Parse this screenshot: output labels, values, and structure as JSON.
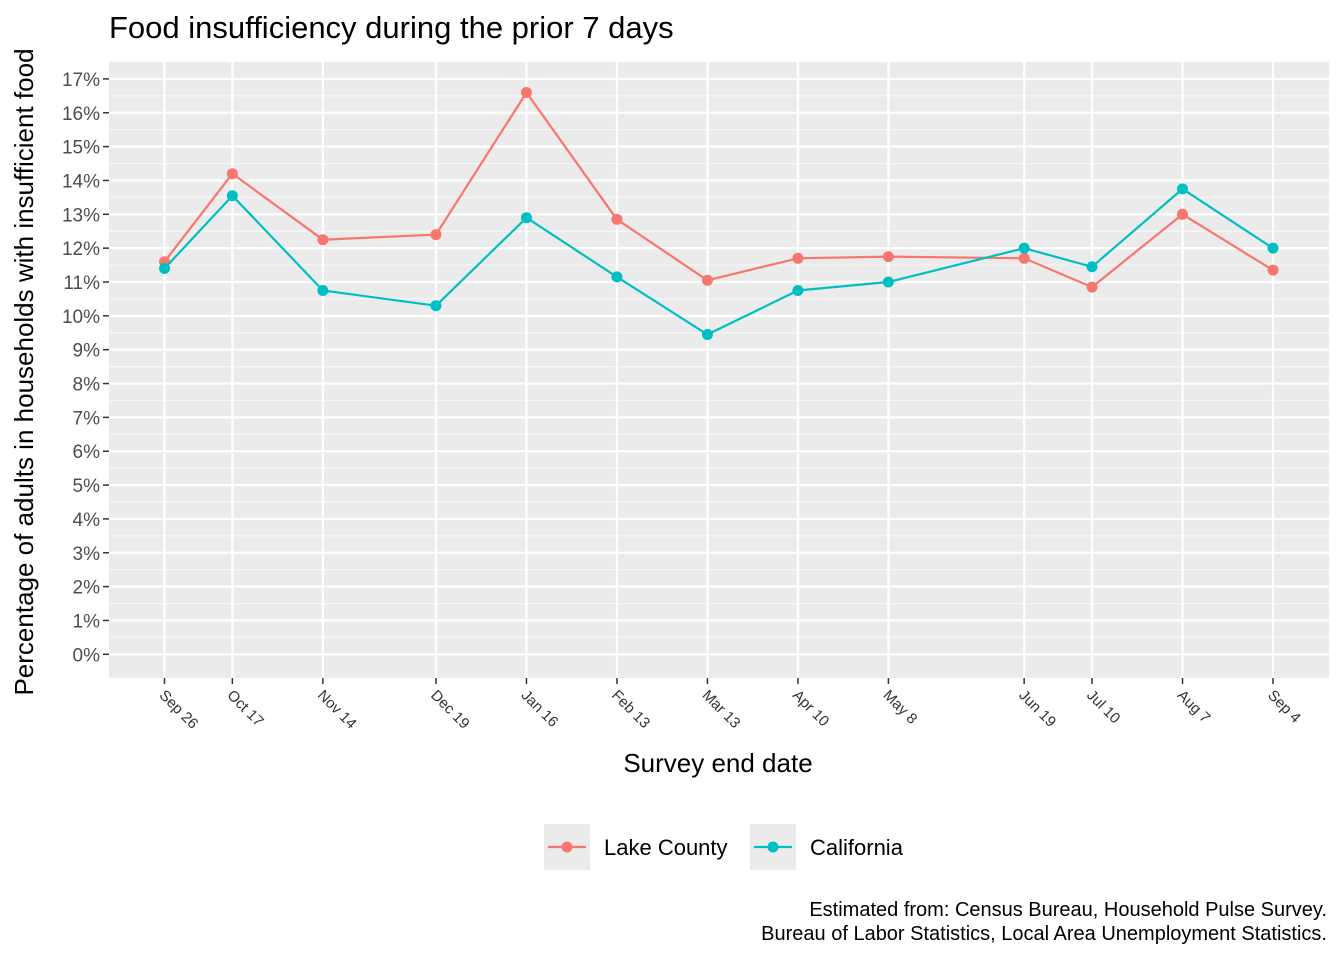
{
  "chart_data": {
    "type": "line",
    "title": "Food insufficiency during the prior 7 days",
    "xlabel": "Survey end date",
    "ylabel": "Percentage of adults in households with insufficient food",
    "x": [
      "2020-09-26",
      "2020-10-17",
      "2020-11-14",
      "2020-12-19",
      "2021-01-16",
      "2021-02-13",
      "2021-03-13",
      "2021-04-10",
      "2021-05-08",
      "2021-06-19",
      "2021-07-10",
      "2021-08-07",
      "2021-09-04"
    ],
    "x_tick_labels": [
      "Sep 26",
      "Oct 17",
      "Nov 14",
      "Dec 19",
      "Jan 16",
      "Feb 13",
      "Mar 13",
      "Apr 10",
      "May  8",
      "Jun 19",
      "Jul 10",
      "Aug  7",
      "Sep  4"
    ],
    "y_ticks": [
      0,
      1,
      2,
      3,
      4,
      5,
      6,
      7,
      8,
      9,
      10,
      11,
      12,
      13,
      14,
      15,
      16,
      17
    ],
    "y_tick_labels": [
      "0%",
      "1%",
      "2%",
      "3%",
      "4%",
      "5%",
      "6%",
      "7%",
      "8%",
      "9%",
      "10%",
      "11%",
      "12%",
      "13%",
      "14%",
      "15%",
      "16%",
      "17%"
    ],
    "ylim": [
      -0.7,
      17.5
    ],
    "grid": true,
    "legend_position": "bottom",
    "series": [
      {
        "name": "Lake County",
        "color": "#F8766D",
        "values": [
          11.6,
          14.2,
          12.25,
          12.4,
          16.6,
          12.85,
          11.05,
          11.7,
          11.75,
          11.7,
          10.85,
          13.0,
          11.35
        ]
      },
      {
        "name": "California",
        "color": "#00BFC4",
        "values": [
          11.4,
          13.55,
          10.75,
          10.3,
          12.9,
          11.15,
          9.45,
          10.75,
          11.0,
          12.0,
          11.45,
          13.75,
          12.0
        ]
      }
    ],
    "caption": [
      "Estimated from: Census Bureau, Household Pulse Survey.",
      "Bureau of Labor Statistics, Local Area Unemployment Statistics."
    ]
  }
}
